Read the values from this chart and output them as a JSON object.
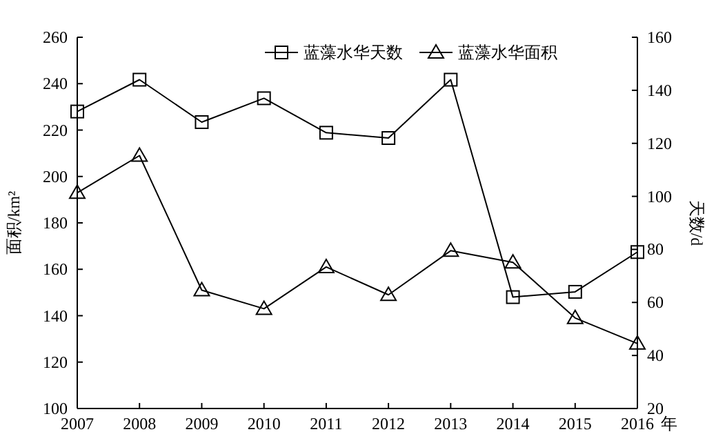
{
  "chart_data": {
    "type": "line",
    "xlabel": "年",
    "ylabel": "面积/km²",
    "y2label": "天数/d",
    "x": [
      2007,
      2008,
      2009,
      2010,
      2011,
      2012,
      2013,
      2014,
      2015,
      2016
    ],
    "xlim": [
      2007,
      2016
    ],
    "xticks": [
      2007,
      2008,
      2009,
      2010,
      2011,
      2012,
      2013,
      2014,
      2015,
      2016
    ],
    "ylim": [
      100,
      260
    ],
    "yticks": [
      100,
      120,
      140,
      160,
      180,
      200,
      220,
      240,
      260
    ],
    "y2lim": [
      20,
      160
    ],
    "y2ticks": [
      20,
      40,
      60,
      80,
      100,
      120,
      140,
      160
    ],
    "legend": "top",
    "grid": false,
    "line_style": "solid",
    "series": [
      {
        "name": "蓝藻水华天数",
        "color": "#000000",
        "axis": "y2",
        "marker": "square",
        "values": [
          132,
          144,
          128,
          137,
          124,
          122,
          144,
          62,
          64,
          79
        ]
      },
      {
        "name": "蓝藻水华面积",
        "color": "#000000",
        "marker": "triangle",
        "values": [
          193,
          209,
          151,
          143,
          161,
          149,
          168,
          163,
          139,
          128
        ]
      }
    ]
  }
}
